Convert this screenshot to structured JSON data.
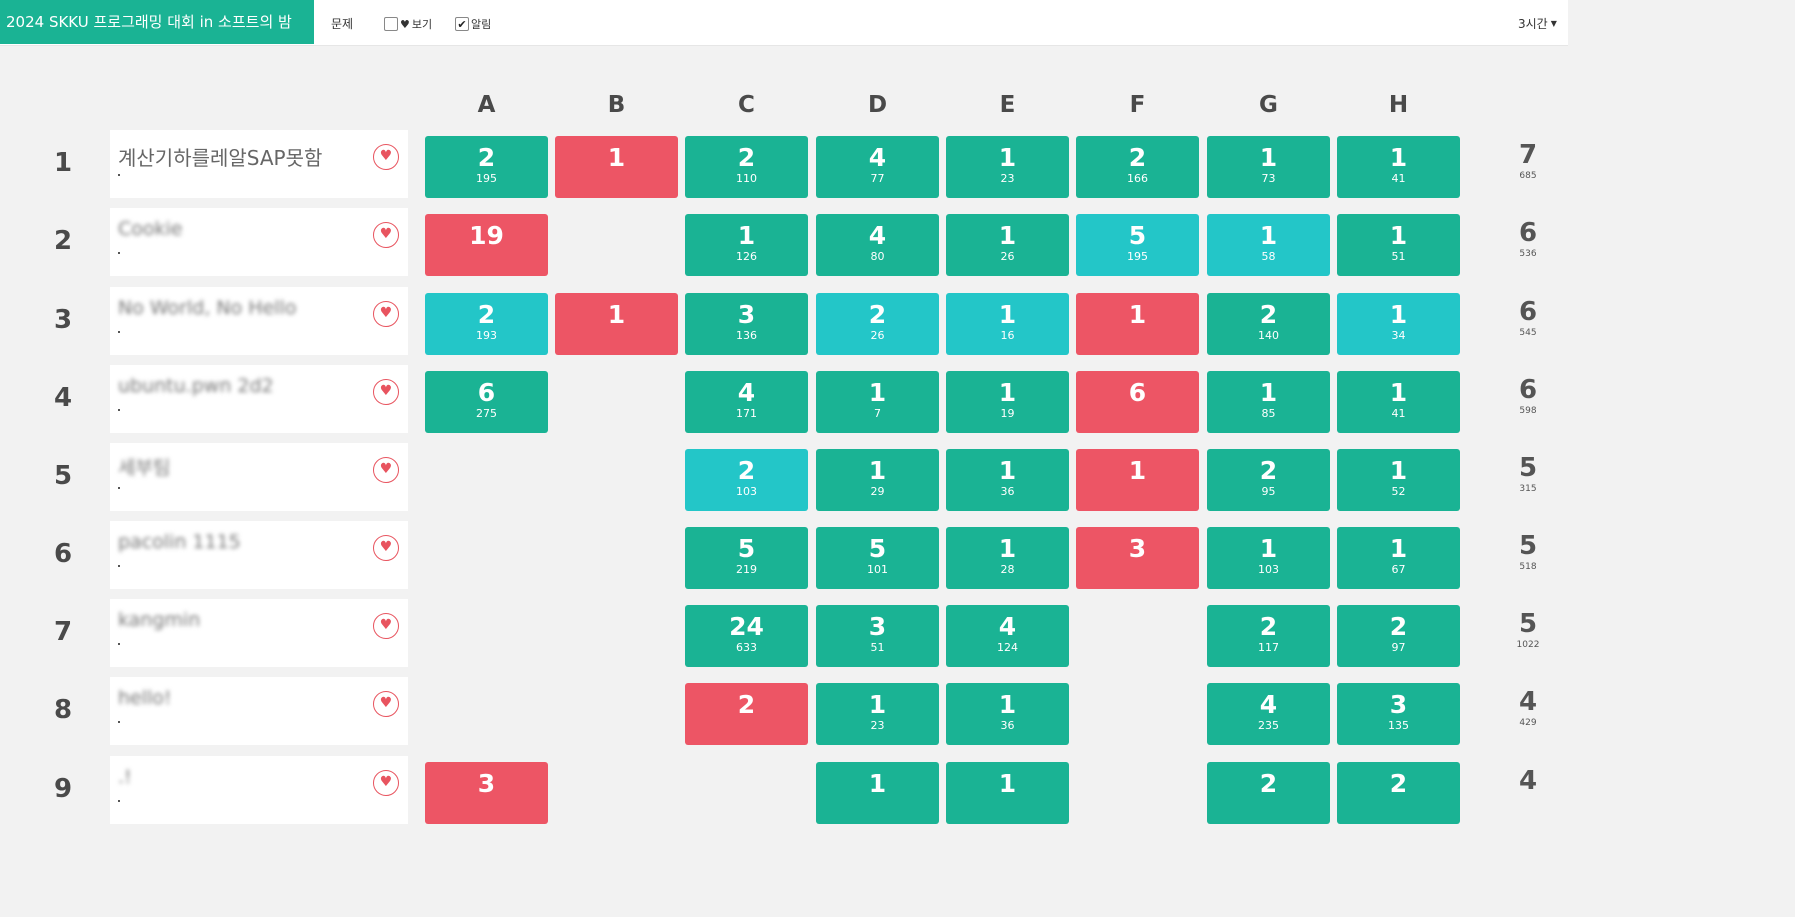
{
  "header": {
    "title": "2024 SKKU 프로그래밍 대회 in 소프트의 밤",
    "problems_label": "문제",
    "view_label": "보기",
    "notify_label": "알림",
    "time_select": "3시간"
  },
  "colors": {
    "solved": "#1ab394",
    "first_solve": "#23c6c8",
    "failed": "#ed5565",
    "brand": "#1ab394"
  },
  "problems": [
    "A",
    "B",
    "C",
    "D",
    "E",
    "F",
    "G",
    "H"
  ],
  "teams": [
    {
      "rank": "1",
      "name": "계산기하를레알SAP못함",
      "name_blurred": false,
      "solved": "7",
      "penalty": "685",
      "cells": [
        {
          "status": "solved",
          "tries": "2",
          "time": "195"
        },
        {
          "status": "failed",
          "tries": "1",
          "time": ""
        },
        {
          "status": "solved",
          "tries": "2",
          "time": "110"
        },
        {
          "status": "solved",
          "tries": "4",
          "time": "77"
        },
        {
          "status": "solved",
          "tries": "1",
          "time": "23"
        },
        {
          "status": "solved",
          "tries": "2",
          "time": "166"
        },
        {
          "status": "solved",
          "tries": "1",
          "time": "73"
        },
        {
          "status": "solved",
          "tries": "1",
          "time": "41"
        }
      ]
    },
    {
      "rank": "2",
      "name": "Cookie",
      "name_blurred": true,
      "solved": "6",
      "penalty": "536",
      "cells": [
        {
          "status": "failed",
          "tries": "19",
          "time": ""
        },
        {
          "status": "none",
          "tries": "",
          "time": ""
        },
        {
          "status": "solved",
          "tries": "1",
          "time": "126"
        },
        {
          "status": "solved",
          "tries": "4",
          "time": "80"
        },
        {
          "status": "solved",
          "tries": "1",
          "time": "26"
        },
        {
          "status": "first",
          "tries": "5",
          "time": "195"
        },
        {
          "status": "first",
          "tries": "1",
          "time": "58"
        },
        {
          "status": "solved",
          "tries": "1",
          "time": "51"
        }
      ]
    },
    {
      "rank": "3",
      "name": "No World, No Hello",
      "name_blurred": true,
      "solved": "6",
      "penalty": "545",
      "cells": [
        {
          "status": "first",
          "tries": "2",
          "time": "193"
        },
        {
          "status": "failed",
          "tries": "1",
          "time": ""
        },
        {
          "status": "solved",
          "tries": "3",
          "time": "136"
        },
        {
          "status": "first",
          "tries": "2",
          "time": "26"
        },
        {
          "status": "first",
          "tries": "1",
          "time": "16"
        },
        {
          "status": "failed",
          "tries": "1",
          "time": ""
        },
        {
          "status": "solved",
          "tries": "2",
          "time": "140"
        },
        {
          "status": "first",
          "tries": "1",
          "time": "34"
        }
      ]
    },
    {
      "rank": "4",
      "name": "ubuntu.pwn 2d2",
      "name_blurred": true,
      "solved": "6",
      "penalty": "598",
      "cells": [
        {
          "status": "solved",
          "tries": "6",
          "time": "275"
        },
        {
          "status": "none",
          "tries": "",
          "time": ""
        },
        {
          "status": "solved",
          "tries": "4",
          "time": "171"
        },
        {
          "status": "solved",
          "tries": "1",
          "time": "7"
        },
        {
          "status": "solved",
          "tries": "1",
          "time": "19"
        },
        {
          "status": "failed",
          "tries": "6",
          "time": ""
        },
        {
          "status": "solved",
          "tries": "1",
          "time": "85"
        },
        {
          "status": "solved",
          "tries": "1",
          "time": "41"
        }
      ]
    },
    {
      "rank": "5",
      "name": "세부팀",
      "name_blurred": true,
      "solved": "5",
      "penalty": "315",
      "cells": [
        {
          "status": "none",
          "tries": "",
          "time": ""
        },
        {
          "status": "none",
          "tries": "",
          "time": ""
        },
        {
          "status": "first",
          "tries": "2",
          "time": "103"
        },
        {
          "status": "solved",
          "tries": "1",
          "time": "29"
        },
        {
          "status": "solved",
          "tries": "1",
          "time": "36"
        },
        {
          "status": "failed",
          "tries": "1",
          "time": ""
        },
        {
          "status": "solved",
          "tries": "2",
          "time": "95"
        },
        {
          "status": "solved",
          "tries": "1",
          "time": "52"
        }
      ]
    },
    {
      "rank": "6",
      "name": "pacolin 1115",
      "name_blurred": true,
      "solved": "5",
      "penalty": "518",
      "cells": [
        {
          "status": "none",
          "tries": "",
          "time": ""
        },
        {
          "status": "none",
          "tries": "",
          "time": ""
        },
        {
          "status": "solved",
          "tries": "5",
          "time": "219"
        },
        {
          "status": "solved",
          "tries": "5",
          "time": "101"
        },
        {
          "status": "solved",
          "tries": "1",
          "time": "28"
        },
        {
          "status": "failed",
          "tries": "3",
          "time": ""
        },
        {
          "status": "solved",
          "tries": "1",
          "time": "103"
        },
        {
          "status": "solved",
          "tries": "1",
          "time": "67"
        }
      ]
    },
    {
      "rank": "7",
      "name": "kangmin",
      "name_blurred": true,
      "solved": "5",
      "penalty": "1022",
      "cells": [
        {
          "status": "none",
          "tries": "",
          "time": ""
        },
        {
          "status": "none",
          "tries": "",
          "time": ""
        },
        {
          "status": "solved",
          "tries": "24",
          "time": "633"
        },
        {
          "status": "solved",
          "tries": "3",
          "time": "51"
        },
        {
          "status": "solved",
          "tries": "4",
          "time": "124"
        },
        {
          "status": "none",
          "tries": "",
          "time": ""
        },
        {
          "status": "solved",
          "tries": "2",
          "time": "117"
        },
        {
          "status": "solved",
          "tries": "2",
          "time": "97"
        }
      ]
    },
    {
      "rank": "8",
      "name": "hello!",
      "name_blurred": true,
      "solved": "4",
      "penalty": "429",
      "cells": [
        {
          "status": "none",
          "tries": "",
          "time": ""
        },
        {
          "status": "none",
          "tries": "",
          "time": ""
        },
        {
          "status": "failed",
          "tries": "2",
          "time": ""
        },
        {
          "status": "solved",
          "tries": "1",
          "time": "23"
        },
        {
          "status": "solved",
          "tries": "1",
          "time": "36"
        },
        {
          "status": "none",
          "tries": "",
          "time": ""
        },
        {
          "status": "solved",
          "tries": "4",
          "time": "235"
        },
        {
          "status": "solved",
          "tries": "3",
          "time": "135"
        }
      ]
    },
    {
      "rank": "9",
      "name": ".!",
      "name_blurred": true,
      "solved": "4",
      "penalty": "",
      "cells": [
        {
          "status": "failed",
          "tries": "3",
          "time": ""
        },
        {
          "status": "none",
          "tries": "",
          "time": ""
        },
        {
          "status": "none",
          "tries": "",
          "time": ""
        },
        {
          "status": "solved",
          "tries": "1",
          "time": ""
        },
        {
          "status": "solved",
          "tries": "1",
          "time": ""
        },
        {
          "status": "none",
          "tries": "",
          "time": ""
        },
        {
          "status": "solved",
          "tries": "2",
          "time": ""
        },
        {
          "status": "solved",
          "tries": "2",
          "time": ""
        }
      ]
    }
  ]
}
